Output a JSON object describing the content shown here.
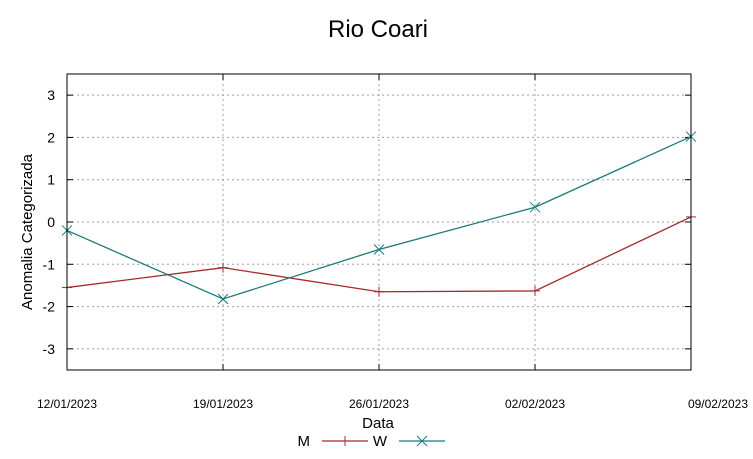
{
  "chart_data": {
    "type": "line",
    "title": "Rio Coari",
    "xlabel": "Data",
    "ylabel": "Anomalia Categorizada",
    "categories": [
      "12/01/2023",
      "19/01/2023",
      "26/01/2023",
      "02/02/2023",
      "09/02/2023"
    ],
    "ylim": [
      -3.5,
      3.5
    ],
    "yticks": [
      -3,
      -2,
      -1,
      0,
      1,
      2,
      3
    ],
    "grid": true,
    "legend_position": "bottom-center",
    "series": [
      {
        "name": "M",
        "color": "#a52a2a",
        "marker": "plus",
        "values": [
          -1.55,
          -1.08,
          -1.65,
          -1.63,
          0.12
        ]
      },
      {
        "name": "W",
        "color": "#1a7a7a",
        "marker": "cross",
        "values": [
          -0.2,
          -1.82,
          -0.65,
          0.35,
          2.02
        ]
      }
    ]
  }
}
